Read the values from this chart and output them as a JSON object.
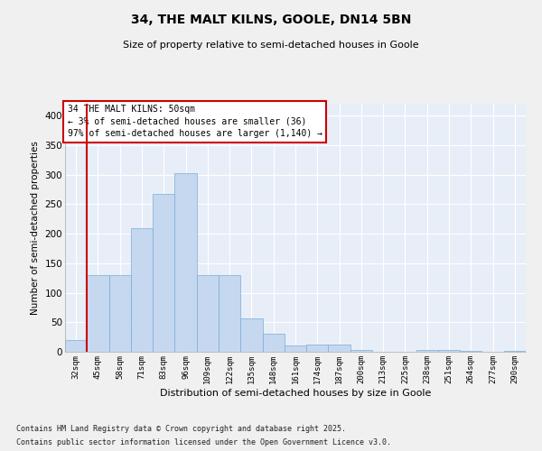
{
  "title1": "34, THE MALT KILNS, GOOLE, DN14 5BN",
  "title2": "Size of property relative to semi-detached houses in Goole",
  "xlabel": "Distribution of semi-detached houses by size in Goole",
  "ylabel": "Number of semi-detached properties",
  "annotation_title": "34 THE MALT KILNS: 50sqm",
  "annotation_line1": "← 3% of semi-detached houses are smaller (36)",
  "annotation_line2": "97% of semi-detached houses are larger (1,140) →",
  "footer1": "Contains HM Land Registry data © Crown copyright and database right 2025.",
  "footer2": "Contains public sector information licensed under the Open Government Licence v3.0.",
  "bar_color": "#c5d8f0",
  "bar_edge_color": "#7aadd4",
  "fig_bg_color": "#f0f0f0",
  "ax_bg_color": "#e8eef8",
  "grid_color": "#ffffff",
  "vline_color": "#cc0000",
  "annotation_box_color": "#cc0000",
  "categories": [
    "32sqm",
    "45sqm",
    "58sqm",
    "71sqm",
    "83sqm",
    "96sqm",
    "109sqm",
    "122sqm",
    "135sqm",
    "148sqm",
    "161sqm",
    "174sqm",
    "187sqm",
    "200sqm",
    "213sqm",
    "225sqm",
    "238sqm",
    "251sqm",
    "264sqm",
    "277sqm",
    "290sqm"
  ],
  "values": [
    20,
    130,
    130,
    210,
    268,
    303,
    130,
    130,
    57,
    30,
    10,
    12,
    12,
    3,
    0,
    0,
    3,
    3,
    1,
    0,
    2
  ],
  "ylim": [
    0,
    420
  ],
  "yticks": [
    0,
    50,
    100,
    150,
    200,
    250,
    300,
    350,
    400
  ]
}
